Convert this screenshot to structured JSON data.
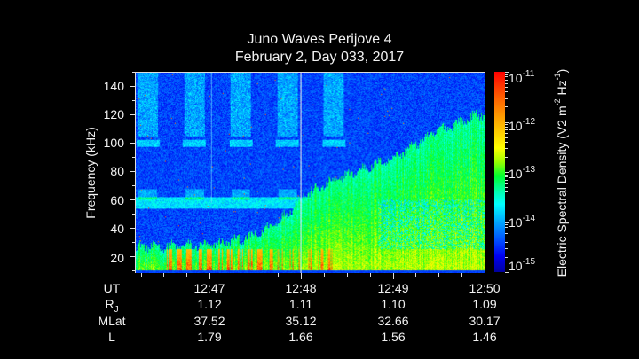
{
  "chart_data": {
    "type": "heatmap",
    "title": "Juno Waves Perijove 4",
    "subtitle": "February 2, Day 033, 2017",
    "xlabel": "UT",
    "ylabel": "Frequency (kHz)",
    "colorbar_label": "Electric Spectral Density (V2 m-2 Hz-1)",
    "y_ticks": [
      20,
      40,
      60,
      80,
      100,
      120,
      140
    ],
    "ylim": [
      8,
      150
    ],
    "x_ticks": [
      "12:47",
      "12:48",
      "12:49",
      "12:50"
    ],
    "xlim": [
      "12:46:11",
      "12:50"
    ],
    "colorbar_ticks": [
      "10^-15",
      "10^-14",
      "10^-13",
      "10^-12",
      "10^-11"
    ],
    "colorbar_range": [
      1e-15,
      1e-11
    ],
    "features": {
      "emission_upper_boundary_khz": [
        {
          "t": "12:46:11",
          "f": 27
        },
        {
          "t": "12:47:00",
          "f": 28
        },
        {
          "t": "12:47:30",
          "f": 35
        },
        {
          "t": "12:47:50",
          "f": 50
        },
        {
          "t": "12:48:00",
          "f": 63
        },
        {
          "t": "12:48:30",
          "f": 78
        },
        {
          "t": "12:49:00",
          "f": 90
        },
        {
          "t": "12:49:30",
          "f": 110
        },
        {
          "t": "12:50:00",
          "f": 122
        }
      ],
      "banded_emission_khz": [
        100,
        58
      ],
      "intense_bursts_khz_range": [
        10,
        25
      ],
      "vertical_marker": "12:48"
    },
    "ephemeris": {
      "rows": [
        "UT",
        "RJ",
        "MLat",
        "L"
      ],
      "columns": [
        {
          "UT": "12:47",
          "RJ": "1.12",
          "MLat": "37.52",
          "L": "1.79"
        },
        {
          "UT": "12:48",
          "RJ": "1.11",
          "MLat": "35.12",
          "L": "1.66"
        },
        {
          "UT": "12:49",
          "RJ": "1.10",
          "MLat": "32.66",
          "L": "1.56"
        },
        {
          "UT": "12:50",
          "RJ": "1.09",
          "MLat": "30.17",
          "L": "1.46"
        }
      ]
    }
  },
  "header": {
    "title": "Juno Waves Perijove 4",
    "subtitle": "February 2, Day 033, 2017"
  },
  "yaxis": {
    "title": "Frequency (kHz)",
    "labels": [
      "140",
      "120",
      "100",
      "80",
      "60",
      "40",
      "20"
    ]
  },
  "colorbar": {
    "title_main": "Electric Spectral Density (V2 m",
    "title_exp1": "-2",
    "title_mid": " Hz",
    "title_exp2": "-1",
    "title_end": ")",
    "base": "10",
    "exponents": [
      "-11",
      "-12",
      "-13",
      "-14",
      "-15"
    ]
  },
  "table": {
    "row_labels": {
      "ut": "UT",
      "rj_main": "R",
      "rj_sub": "J",
      "mlat": "MLat",
      "l": "L"
    },
    "columns": [
      {
        "ut": "12:47",
        "rj": "1.12",
        "mlat": "37.52",
        "l": "1.79"
      },
      {
        "ut": "12:48",
        "rj": "1.11",
        "mlat": "35.12",
        "l": "1.66"
      },
      {
        "ut": "12:49",
        "rj": "1.10",
        "mlat": "32.66",
        "l": "1.56"
      },
      {
        "ut": "12:50",
        "rj": "1.09",
        "mlat": "30.17",
        "l": "1.46"
      }
    ]
  }
}
